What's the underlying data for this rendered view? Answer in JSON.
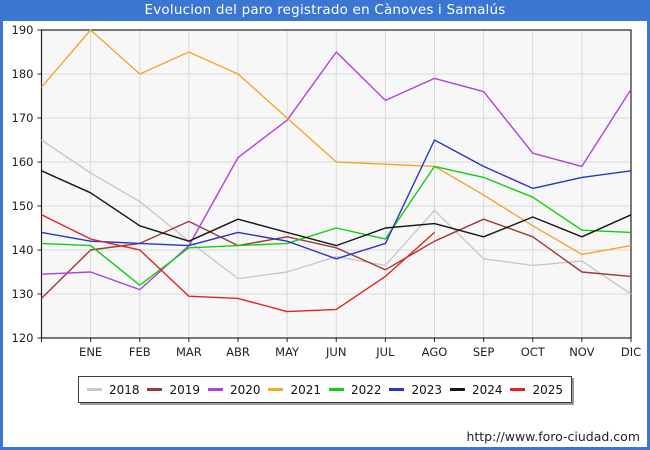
{
  "title": "Evolucion del paro registrado en Cànoves i Samalús",
  "footer": {
    "url": "http://www.foro-ciudad.com"
  },
  "colors": {
    "titlebar": "#3a76d2",
    "frame": "#3a76d2",
    "plot_bg": "#f7f7f7",
    "grid": "#d9d9d9",
    "plot_border": "#222222",
    "axis_text": "#222222"
  },
  "chart_data": {
    "type": "line",
    "title": "Evolucion del paro registrado en Cànoves i Samalús",
    "x_categories": [
      "ENE",
      "FEB",
      "MAR",
      "ABR",
      "MAY",
      "JUN",
      "JUL",
      "AGO",
      "SEP",
      "OCT",
      "NOV",
      "DIC"
    ],
    "points_note": "13 points per full series: value at left plot edge (month before ENE) followed by ENE..DIC; 2025 ends at AGO",
    "ylim": [
      120,
      190
    ],
    "yticks": [
      120,
      130,
      140,
      150,
      160,
      170,
      180,
      190
    ],
    "grid": true,
    "legend_position": "bottom",
    "series": [
      {
        "name": "2018",
        "color": "#c9c9c9",
        "values": [
          165,
          157.5,
          151,
          142,
          133.5,
          135,
          138.5,
          136.5,
          149,
          138,
          136.5,
          137.5,
          130
        ]
      },
      {
        "name": "2019",
        "color": "#9e3a3a",
        "values": [
          129,
          140,
          141.5,
          146.5,
          141,
          143,
          140.5,
          135.5,
          142,
          147,
          143,
          135,
          134
        ]
      },
      {
        "name": "2020",
        "color": "#ab44dd",
        "values": [
          134.5,
          135,
          131,
          141,
          161,
          169.5,
          185,
          174,
          179,
          176,
          162,
          159,
          176.5
        ]
      },
      {
        "name": "2021",
        "color": "#f2a72e",
        "values": [
          177,
          190,
          180,
          185,
          180,
          170,
          160,
          159.5,
          159,
          152.5,
          145.5,
          139,
          141
        ]
      },
      {
        "name": "2022",
        "color": "#10cf10",
        "values": [
          141.5,
          141,
          132,
          140.5,
          141,
          141.5,
          145,
          142.5,
          159,
          156.5,
          152,
          144.5,
          144
        ]
      },
      {
        "name": "2023",
        "color": "#2836c8",
        "values": [
          144,
          142,
          141.5,
          141,
          144,
          142,
          138,
          141.5,
          165,
          159,
          154,
          156.5,
          158
        ]
      },
      {
        "name": "2024",
        "color": "#161616",
        "values": [
          158,
          153,
          145.5,
          142,
          147,
          144,
          141,
          145,
          146,
          143,
          147.5,
          143,
          148
        ]
      },
      {
        "name": "2025",
        "color": "#e42222",
        "values": [
          148,
          142.5,
          140,
          129.5,
          129,
          126,
          126.5,
          134,
          144
        ]
      }
    ]
  }
}
